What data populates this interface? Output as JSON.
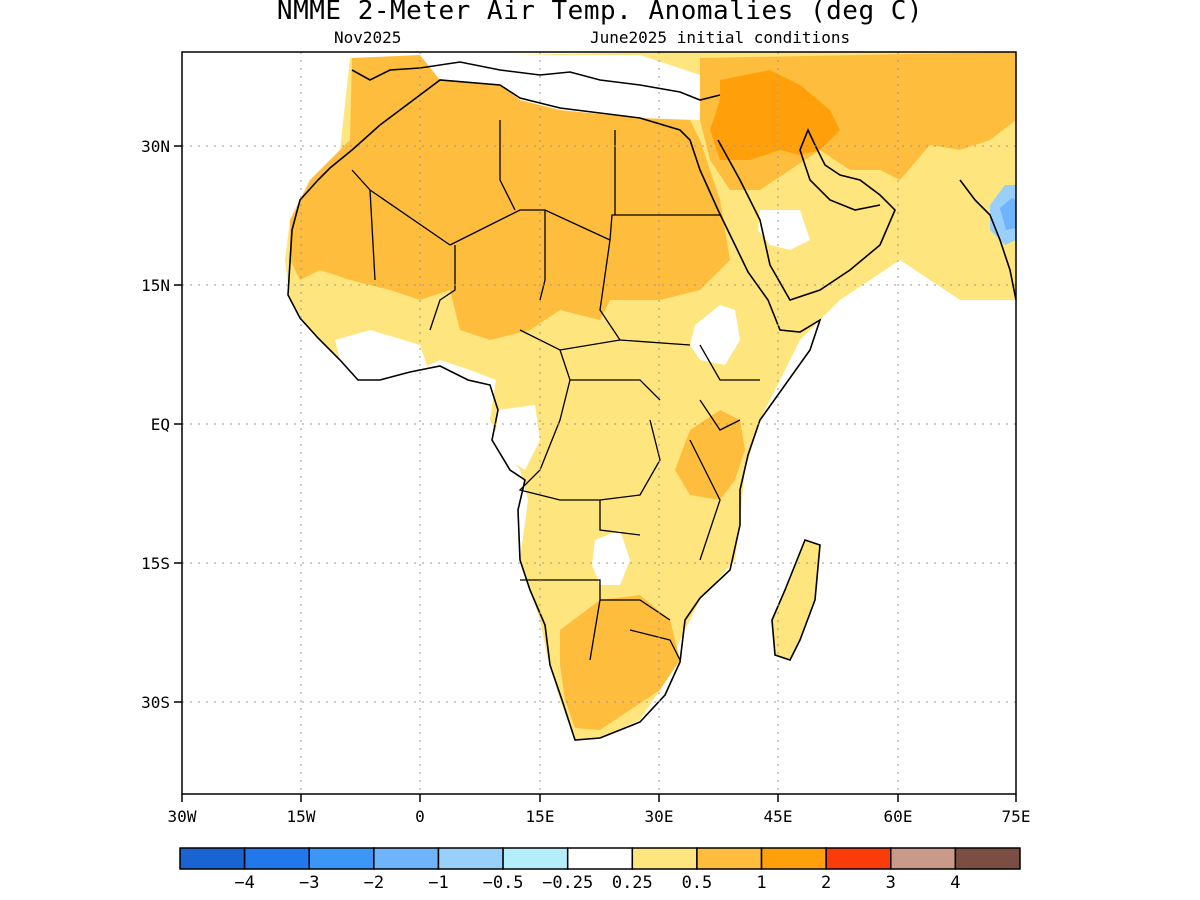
{
  "title": "NMME 2-Meter Air Temp. Anomalies (deg C)",
  "subtitle_left": "Nov2025",
  "subtitle_right": "June2025 initial conditions",
  "lon_ticks": [
    "30W",
    "15W",
    "0",
    "15E",
    "30E",
    "45E",
    "60E",
    "75E"
  ],
  "lat_ticks": [
    "30N",
    "15N",
    "EQ",
    "15S",
    "30S"
  ],
  "colorbar": {
    "colors": [
      "#1a63d2",
      "#2278ea",
      "#3c96f5",
      "#6fb3fb",
      "#99cffb",
      "#b4eefb",
      "#ffffff",
      "#ffe57e",
      "#ffbd3d",
      "#ffa00a",
      "#fa3c0a",
      "#c99a8a",
      "#7a4e42"
    ],
    "labels": [
      "−4",
      "−3",
      "−2",
      "−1",
      "−0.5",
      "−0.25",
      "0.25",
      "0.5",
      "1",
      "2",
      "3",
      "4"
    ]
  },
  "map": {
    "lon_range": [
      -30,
      75
    ],
    "lat_range": [
      -40,
      40
    ],
    "grid": "dotted"
  }
}
